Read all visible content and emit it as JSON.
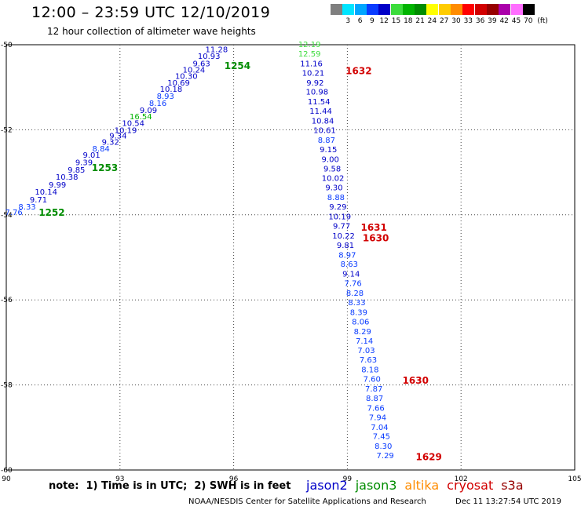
{
  "header": {
    "title": "12:00 – 23:59 UTC 12/10/2019",
    "subtitle": "12 hour collection of altimeter wave heights"
  },
  "colorbar": {
    "unit": "(ft)",
    "bins": [
      {
        "label": "",
        "color": "#7f7f7f"
      },
      {
        "label": "3",
        "color": "#00e5ff"
      },
      {
        "label": "6",
        "color": "#00a6ff"
      },
      {
        "label": "9",
        "color": "#0a3cff"
      },
      {
        "label": "12",
        "color": "#0000c8"
      },
      {
        "label": "15",
        "color": "#3cdc3c"
      },
      {
        "label": "18",
        "color": "#00b400"
      },
      {
        "label": "21",
        "color": "#008c00"
      },
      {
        "label": "24",
        "color": "#ffff00"
      },
      {
        "label": "27",
        "color": "#ffcc00"
      },
      {
        "label": "30",
        "color": "#ff8c00"
      },
      {
        "label": "33",
        "color": "#ff0000"
      },
      {
        "label": "36",
        "color": "#d20000"
      },
      {
        "label": "39",
        "color": "#960000"
      },
      {
        "label": "42",
        "color": "#aa00aa"
      },
      {
        "label": "45",
        "color": "#ff6eff"
      },
      {
        "label": "70",
        "color": "#000000"
      }
    ]
  },
  "footer": {
    "note": "note:  1) Time is in UTC;  2) SWH is in feet",
    "credit": "NOAA/NESDIS Center for Satellite Applications and Research",
    "timestamp": "Dec 11 13:27:54 UTC 2019",
    "satellites": [
      {
        "name": "jason2",
        "color": "#0000c8"
      },
      {
        "name": "jason3",
        "color": "#008c00"
      },
      {
        "name": "altika",
        "color": "#ff8c00"
      },
      {
        "name": "cryosat",
        "color": "#d20000"
      },
      {
        "name": "s3a",
        "color": "#960000"
      }
    ]
  },
  "chart_data": {
    "type": "scatter",
    "xlim": [
      90,
      105
    ],
    "ylim": [
      -60,
      -50
    ],
    "x_ticks": [
      90,
      93,
      96,
      99,
      102,
      105
    ],
    "y_ticks": [
      -50,
      -52,
      -54,
      -56,
      -58,
      -60
    ],
    "grid": true,
    "points": [
      {
        "x": 90.2,
        "y": -53.95,
        "v": "7.76"
      },
      {
        "x": 90.55,
        "y": -53.82,
        "v": "8.33"
      },
      {
        "x": 90.85,
        "y": -53.65,
        "v": "9.71"
      },
      {
        "x": 91.05,
        "y": -53.47,
        "v": "10.14"
      },
      {
        "x": 91.35,
        "y": -53.3,
        "v": "9.99"
      },
      {
        "x": 91.6,
        "y": -53.12,
        "v": "10.38"
      },
      {
        "x": 91.85,
        "y": -52.95,
        "v": "9.85"
      },
      {
        "x": 92.05,
        "y": -52.78,
        "v": "9.39"
      },
      {
        "x": 92.25,
        "y": -52.6,
        "v": "9.01"
      },
      {
        "x": 92.5,
        "y": -52.45,
        "v": "8.84"
      },
      {
        "x": 92.75,
        "y": -52.3,
        "v": "9.32"
      },
      {
        "x": 92.95,
        "y": -52.15,
        "v": "9.34"
      },
      {
        "x": 93.15,
        "y": -52.02,
        "v": "10.19"
      },
      {
        "x": 93.35,
        "y": -51.85,
        "v": "10.54"
      },
      {
        "x": 93.55,
        "y": -51.7,
        "v": "16.54"
      },
      {
        "x": 93.75,
        "y": -51.55,
        "v": "9.09"
      },
      {
        "x": 94.0,
        "y": -51.38,
        "v": "8.16"
      },
      {
        "x": 94.2,
        "y": -51.22,
        "v": "8.93"
      },
      {
        "x": 94.35,
        "y": -51.05,
        "v": "10.18"
      },
      {
        "x": 94.55,
        "y": -50.9,
        "v": "10.69"
      },
      {
        "x": 94.75,
        "y": -50.75,
        "v": "10.30"
      },
      {
        "x": 94.95,
        "y": -50.6,
        "v": "10.24"
      },
      {
        "x": 95.15,
        "y": -50.45,
        "v": "9.63"
      },
      {
        "x": 95.35,
        "y": -50.28,
        "v": "10.93"
      },
      {
        "x": 95.55,
        "y": -50.12,
        "v": "11.28"
      },
      {
        "x": 98.0,
        "y": -50.0,
        "v": "12.19"
      },
      {
        "x": 98.0,
        "y": -50.22,
        "v": "12.59"
      },
      {
        "x": 98.05,
        "y": -50.45,
        "v": "11.16"
      },
      {
        "x": 98.1,
        "y": -50.67,
        "v": "10.21"
      },
      {
        "x": 98.15,
        "y": -50.9,
        "v": "9.92"
      },
      {
        "x": 98.2,
        "y": -51.12,
        "v": "10.98"
      },
      {
        "x": 98.25,
        "y": -51.35,
        "v": "11.54"
      },
      {
        "x": 98.3,
        "y": -51.57,
        "v": "11.44"
      },
      {
        "x": 98.35,
        "y": -51.8,
        "v": "10.84"
      },
      {
        "x": 98.4,
        "y": -52.02,
        "v": "10.61"
      },
      {
        "x": 98.45,
        "y": -52.25,
        "v": "8.87"
      },
      {
        "x": 98.5,
        "y": -52.47,
        "v": "9.15"
      },
      {
        "x": 98.55,
        "y": -52.7,
        "v": "9.00"
      },
      {
        "x": 98.6,
        "y": -52.92,
        "v": "9.58"
      },
      {
        "x": 98.62,
        "y": -53.15,
        "v": "10.02"
      },
      {
        "x": 98.65,
        "y": -53.37,
        "v": "9.30"
      },
      {
        "x": 98.7,
        "y": -53.6,
        "v": "8.88"
      },
      {
        "x": 98.75,
        "y": -53.82,
        "v": "9.29"
      },
      {
        "x": 98.8,
        "y": -54.05,
        "v": "10.19"
      },
      {
        "x": 98.85,
        "y": -54.27,
        "v": "9.77"
      },
      {
        "x": 98.9,
        "y": -54.5,
        "v": "10.22"
      },
      {
        "x": 98.95,
        "y": -54.72,
        "v": "9.81"
      },
      {
        "x": 99.0,
        "y": -54.95,
        "v": "8.97"
      },
      {
        "x": 99.05,
        "y": -55.17,
        "v": "8.63"
      },
      {
        "x": 99.1,
        "y": -55.4,
        "v": "9.14"
      },
      {
        "x": 99.15,
        "y": -55.62,
        "v": "7.76"
      },
      {
        "x": 99.2,
        "y": -55.85,
        "v": "8.28"
      },
      {
        "x": 99.25,
        "y": -56.07,
        "v": "8.33"
      },
      {
        "x": 99.3,
        "y": -56.3,
        "v": "8.39"
      },
      {
        "x": 99.35,
        "y": -56.52,
        "v": "8.06"
      },
      {
        "x": 99.4,
        "y": -56.75,
        "v": "8.29"
      },
      {
        "x": 99.45,
        "y": -56.97,
        "v": "7.14"
      },
      {
        "x": 99.5,
        "y": -57.2,
        "v": "7.03"
      },
      {
        "x": 99.55,
        "y": -57.42,
        "v": "7.63"
      },
      {
        "x": 99.6,
        "y": -57.65,
        "v": "8.18"
      },
      {
        "x": 99.65,
        "y": -57.87,
        "v": "7.60"
      },
      {
        "x": 99.7,
        "y": -58.1,
        "v": "7.87"
      },
      {
        "x": 99.72,
        "y": -58.32,
        "v": "8.87"
      },
      {
        "x": 99.75,
        "y": -58.55,
        "v": "7.66"
      },
      {
        "x": 99.8,
        "y": -58.77,
        "v": "7.94"
      },
      {
        "x": 99.85,
        "y": -59.0,
        "v": "7.04"
      },
      {
        "x": 99.9,
        "y": -59.22,
        "v": "7.45"
      },
      {
        "x": 99.95,
        "y": -59.45,
        "v": "8.30"
      },
      {
        "x": 100.0,
        "y": -59.67,
        "v": "7.29"
      }
    ],
    "pass_labels": [
      {
        "x": 91.2,
        "y": -53.95,
        "text": "1252",
        "sat": "jason3"
      },
      {
        "x": 92.6,
        "y": -52.9,
        "text": "1253",
        "sat": "jason3"
      },
      {
        "x": 96.1,
        "y": -50.5,
        "text": "1254",
        "sat": "jason3"
      },
      {
        "x": 99.3,
        "y": -50.62,
        "text": "1632",
        "sat": "cryosat"
      },
      {
        "x": 99.7,
        "y": -54.3,
        "text": "1631",
        "sat": "cryosat"
      },
      {
        "x": 99.75,
        "y": -54.55,
        "text": "1630",
        "sat": "cryosat"
      },
      {
        "x": 100.8,
        "y": -57.9,
        "text": "1630",
        "sat": "cryosat"
      },
      {
        "x": 101.15,
        "y": -59.7,
        "text": "1629",
        "sat": "cryosat"
      }
    ]
  }
}
